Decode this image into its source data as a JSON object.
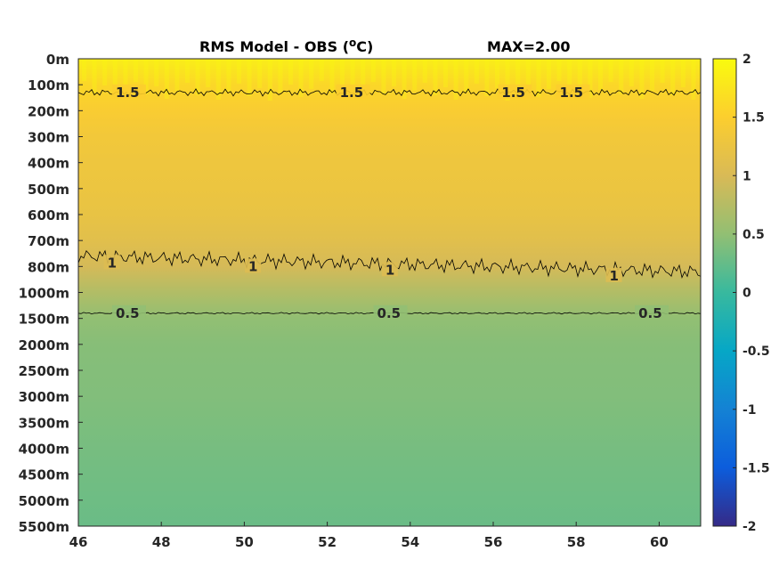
{
  "chart_data": {
    "type": "heatmap",
    "title": "RMS Model - OBS (",
    "title_unit_sup": "o",
    "title_unit_end": "C)",
    "max_label": "MAX=2.00",
    "xlabel": "",
    "ylabel": "",
    "x_ticks": [
      "46",
      "48",
      "50",
      "52",
      "54",
      "56",
      "58",
      "60"
    ],
    "x_tick_values": [
      46,
      48,
      50,
      52,
      54,
      56,
      58,
      60
    ],
    "xlim": [
      46,
      61
    ],
    "y_ticks": [
      "0m",
      "100m",
      "200m",
      "300m",
      "400m",
      "500m",
      "600m",
      "700m",
      "800m",
      "1000m",
      "1500m",
      "2000m",
      "2500m",
      "3000m",
      "3500m",
      "4000m",
      "4500m",
      "5000m",
      "5500m"
    ],
    "colorbar": {
      "ticks": [
        "2",
        "1.5",
        "1",
        "0.5",
        "0",
        "-0.5",
        "-1",
        "-1.5",
        "-2"
      ],
      "range": [
        -2,
        2
      ],
      "colormap": "parula"
    },
    "depth_profile": [
      {
        "level": 0,
        "value": 1.85
      },
      {
        "level": 1,
        "value": 1.6
      },
      {
        "level": 2,
        "value": 1.45
      },
      {
        "level": 3,
        "value": 1.35
      },
      {
        "level": 4,
        "value": 1.3
      },
      {
        "level": 5,
        "value": 1.27
      },
      {
        "level": 6,
        "value": 1.22
      },
      {
        "level": 7,
        "value": 1.12
      },
      {
        "level": 8,
        "value": 0.97
      },
      {
        "level": 9,
        "value": 0.72
      },
      {
        "level": 10,
        "value": 0.5
      },
      {
        "level": 11,
        "value": 0.44
      },
      {
        "level": 12,
        "value": 0.42
      },
      {
        "level": 13,
        "value": 0.41
      },
      {
        "level": 14,
        "value": 0.38
      },
      {
        "level": 15,
        "value": 0.35
      },
      {
        "level": 16,
        "value": 0.32
      },
      {
        "level": 17,
        "value": 0.3
      },
      {
        "level": 18,
        "value": 0.28
      }
    ],
    "contours": [
      {
        "level": "1.5",
        "depth_level": 1.3,
        "labels": [
          {
            "x": 46.9,
            "text": "1.5"
          },
          {
            "x": 52.3,
            "text": "1.5"
          },
          {
            "x": 56.2,
            "text": "1.5"
          },
          {
            "x": 57.6,
            "text": "1.5"
          }
        ]
      },
      {
        "level": "1",
        "depth_level": 7.9,
        "labels": [
          {
            "x": 46.7,
            "text": "1"
          },
          {
            "x": 50.1,
            "text": "1"
          },
          {
            "x": 53.4,
            "text": "1"
          },
          {
            "x": 58.8,
            "text": "1"
          }
        ]
      },
      {
        "level": "0.5",
        "depth_level": 9.8,
        "labels": [
          {
            "x": 46.9,
            "text": "0.5"
          },
          {
            "x": 53.2,
            "text": "0.5"
          },
          {
            "x": 59.5,
            "text": "0.5"
          }
        ]
      }
    ]
  }
}
